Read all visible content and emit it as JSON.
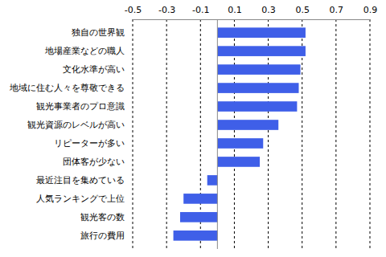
{
  "chart_data": {
    "type": "bar",
    "orientation": "horizontal",
    "categories": [
      "独自の世界観",
      "地場産業などの職人",
      "文化水準が高い",
      "地域に住む人々を尊敬できる",
      "観光事業者のプロ意識",
      "観光資源のレベルが高い",
      "リピーターが多い",
      "団体客が少ない",
      "最近注目を集めている",
      "人気ランキングで上位",
      "観光客の数",
      "旅行の費用"
    ],
    "values": [
      0.52,
      0.52,
      0.49,
      0.48,
      0.47,
      0.36,
      0.27,
      0.25,
      -0.06,
      -0.2,
      -0.22,
      -0.26
    ],
    "color": "#3f5fe8",
    "xlim": [
      -0.5,
      0.9
    ],
    "xticks": [
      -0.5,
      -0.3,
      -0.1,
      0.1,
      0.3,
      0.5,
      0.7,
      0.9
    ],
    "grid": true
  }
}
